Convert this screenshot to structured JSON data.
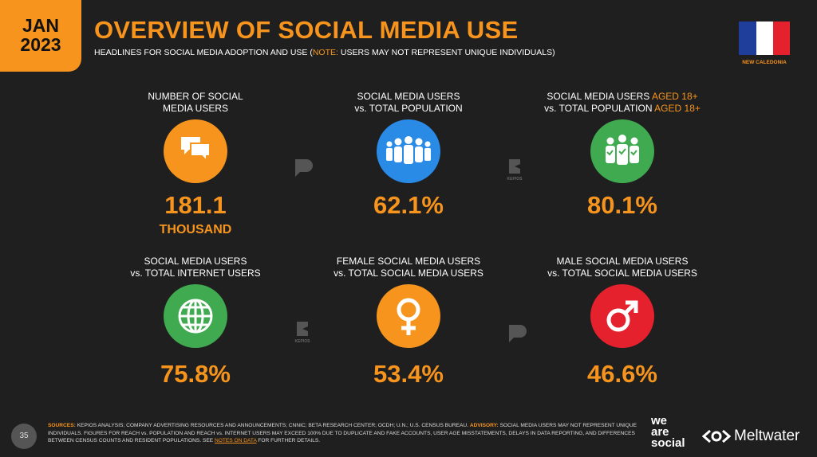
{
  "header": {
    "month": "JAN",
    "year": "2023",
    "title": "OVERVIEW OF SOCIAL MEDIA USE",
    "subtitle": {
      "before": "HEADLINES FOR SOCIAL MEDIA ADOPTION AND USE (",
      "note": "NOTE:",
      "after": " USERS MAY NOT REPRESENT UNIQUE INDIVIDUALS)"
    },
    "country": "NEW CALEDONIA"
  },
  "stats": [
    {
      "label": [
        {
          "text": "NUMBER OF SOCIAL"
        },
        {
          "text": "MEDIA USERS"
        }
      ],
      "value": "181.1",
      "unit": "THOUSAND"
    },
    {
      "label": [
        {
          "text": "SOCIAL MEDIA USERS"
        },
        {
          "text": "vs. TOTAL POPULATION"
        }
      ],
      "value": "62.1%"
    },
    {
      "label": [
        {
          "text": "SOCIAL MEDIA USERS ",
          "accent": "AGED 18+"
        },
        {
          "text": "vs. TOTAL POPULATION ",
          "accent": "AGED 18+"
        }
      ],
      "value": "80.1%"
    },
    {
      "label": [
        {
          "text": "SOCIAL MEDIA USERS"
        },
        {
          "text": "vs. TOTAL INTERNET USERS"
        }
      ],
      "value": "75.8%"
    },
    {
      "label": [
        {
          "text": "FEMALE SOCIAL MEDIA USERS"
        },
        {
          "text": "vs. TOTAL SOCIAL MEDIA USERS"
        }
      ],
      "value": "53.4%"
    },
    {
      "label": [
        {
          "text": "MALE SOCIAL MEDIA USERS"
        },
        {
          "text": "vs. TOTAL SOCIAL MEDIA USERS"
        }
      ],
      "value": "46.6%"
    }
  ],
  "watermark": "KEPIOS",
  "footer": {
    "page": "35",
    "sources_label": "SOURCES:",
    "sources": " KEPIOS ANALYSIS; COMPANY ADVERTISING RESOURCES AND ANNOUNCEMENTS; CNNIC; BETA RESEARCH CENTER; OCDH; U.N.; U.S. CENSUS BUREAU. ",
    "advisory_label": "ADVISORY:",
    "advisory": " SOCIAL MEDIA USERS MAY NOT REPRESENT UNIQUE INDIVIDUALS. FIGURES FOR REACH vs. POPULATION AND REACH vs. INTERNET USERS MAY EXCEED 100% DUE TO DUPLICATE AND FAKE ACCOUNTS, USER AGE MISSTATEMENTS, DELAYS IN DATA REPORTING, AND DIFFERENCES BETWEEN CENSUS COUNTS AND RESIDENT POPULATIONS. SEE ",
    "link": "NOTES ON DATA",
    "link_after": " FOR FURTHER DETAILS.",
    "logo_we": "we",
    "logo_are": "are",
    "logo_social": "social",
    "logo_meltwater": "Meltwater"
  }
}
